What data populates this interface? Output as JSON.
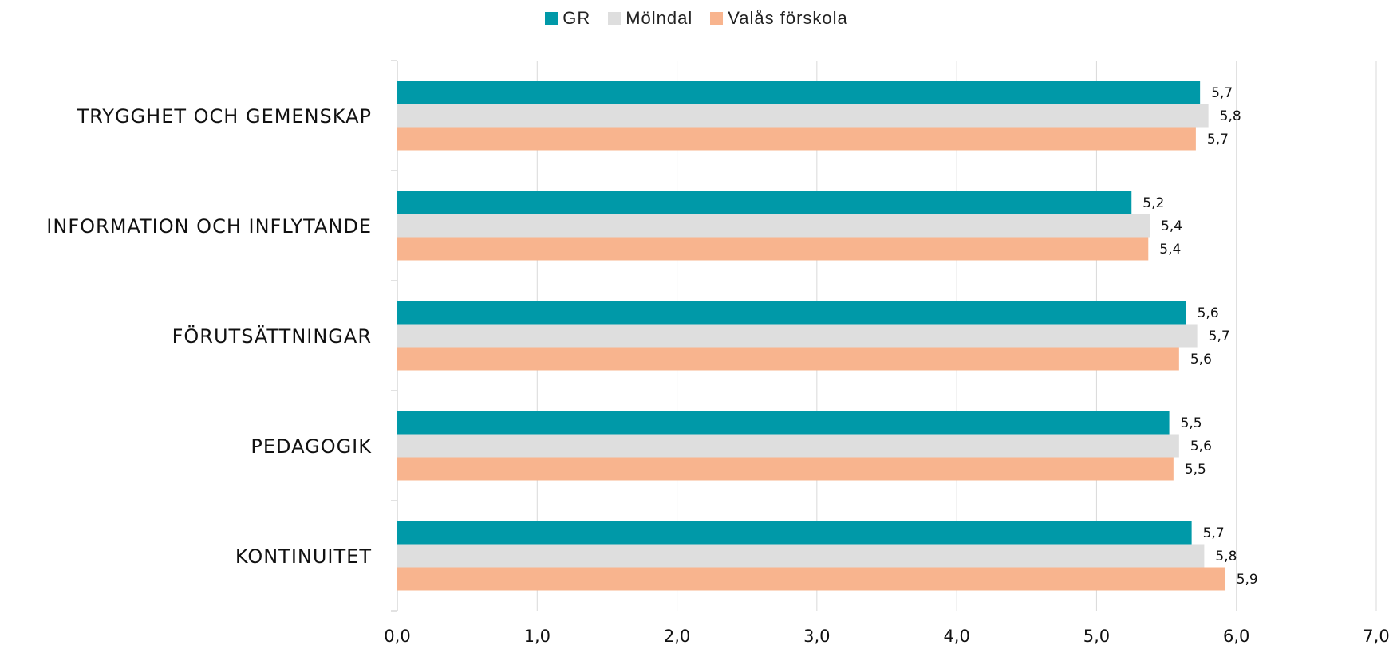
{
  "chart_data": {
    "type": "bar",
    "orientation": "horizontal",
    "categories": [
      "TRYGGHET OCH GEMENSKAP",
      "INFORMATION OCH INFLYTANDE",
      "FÖRUTSÄTTNINGAR",
      "PEDAGOGIK",
      "KONTINUITET"
    ],
    "series": [
      {
        "name": "GR",
        "color": "#0099A8",
        "values": [
          5.74,
          5.25,
          5.64,
          5.52,
          5.68
        ],
        "labels": [
          "5,7",
          "5,2",
          "5,6",
          "5,5",
          "5,7"
        ]
      },
      {
        "name": "Mölndal",
        "color": "#DEDEDE",
        "values": [
          5.8,
          5.38,
          5.72,
          5.59,
          5.77
        ],
        "labels": [
          "5,8",
          "5,4",
          "5,7",
          "5,6",
          "5,8"
        ]
      },
      {
        "name": "Valås förskola",
        "color": "#F8B48E",
        "values": [
          5.71,
          5.37,
          5.59,
          5.55,
          5.92
        ],
        "labels": [
          "5,7",
          "5,4",
          "5,6",
          "5,5",
          "5,9"
        ]
      }
    ],
    "xlim": [
      0,
      7
    ],
    "xticks": [
      0,
      1,
      2,
      3,
      4,
      5,
      6,
      7
    ],
    "xtick_labels": [
      "0,0",
      "1,0",
      "2,0",
      "3,0",
      "4,0",
      "5,0",
      "6,0",
      "7,0"
    ],
    "grid": true,
    "legend_position": "top-center",
    "title": "",
    "xlabel": "",
    "ylabel": ""
  }
}
